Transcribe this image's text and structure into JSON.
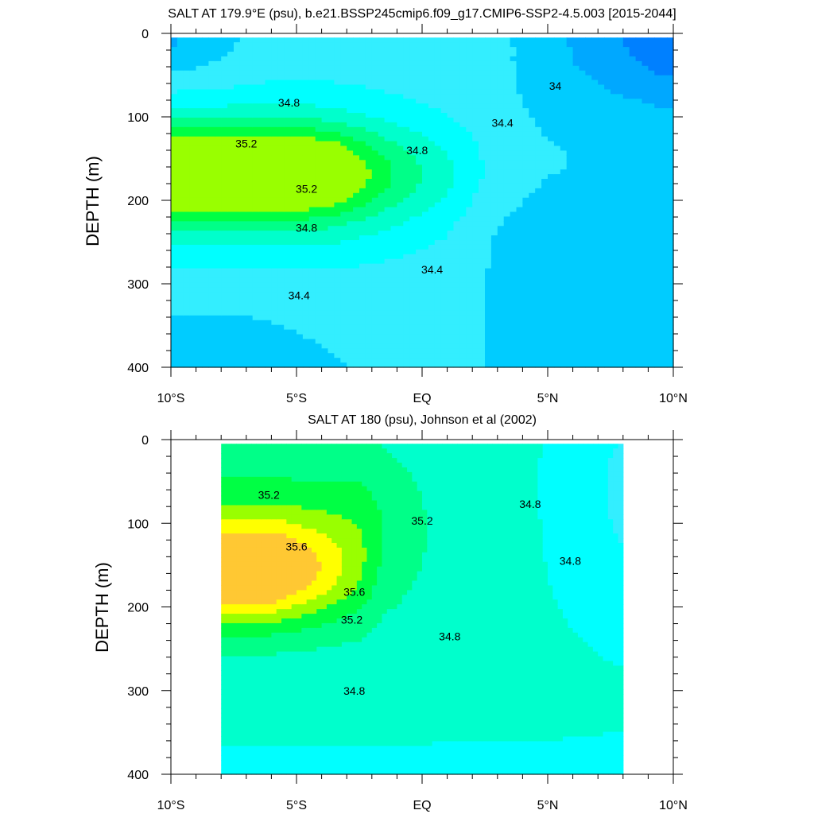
{
  "chart_data": [
    {
      "type": "heatmap",
      "title": "SALT AT 179.9°E (psu), b.e21.BSSP245cmip6.f09_g17.CMIP6-SSP2-4.5.003 [2015-2044]",
      "ylabel": "DEPTH (m)",
      "xlabel": "",
      "xlim": [
        -10,
        10
      ],
      "ylim": [
        400,
        0
      ],
      "y_ticks": [
        "0",
        "100",
        "200",
        "300",
        "400"
      ],
      "x_ticks": [
        "10°S",
        "5°S",
        "EQ",
        "5°N",
        "10°N"
      ],
      "data_extent": {
        "lat": [
          -10,
          10
        ],
        "depth": [
          5,
          400
        ]
      },
      "levels": [
        33.6,
        33.8,
        34.0,
        34.2,
        34.4,
        34.6,
        34.8,
        35.0,
        35.2,
        35.4
      ],
      "contour_labels": [
        {
          "value": "34.8",
          "lat": -5.3,
          "depth": 83
        },
        {
          "value": "35.2",
          "lat": -7.0,
          "depth": 132
        },
        {
          "value": "34.8",
          "lat": -0.2,
          "depth": 140
        },
        {
          "value": "34.4",
          "lat": 3.2,
          "depth": 107
        },
        {
          "value": "34",
          "lat": 5.3,
          "depth": 63
        },
        {
          "value": "35.2",
          "lat": -4.6,
          "depth": 186
        },
        {
          "value": "34.8",
          "lat": -4.6,
          "depth": 233
        },
        {
          "value": "34.4",
          "lat": 0.4,
          "depth": 283
        },
        {
          "value": "34.4",
          "lat": -4.9,
          "depth": 314
        }
      ]
    },
    {
      "type": "heatmap",
      "title": "SALT AT 180 (psu), Johnson et al (2002)",
      "ylabel": "DEPTH (m)",
      "xlabel": "",
      "xlim": [
        -10,
        10
      ],
      "ylim": [
        400,
        0
      ],
      "y_ticks": [
        "0",
        "100",
        "200",
        "300",
        "400"
      ],
      "x_ticks": [
        "10°S",
        "5°S",
        "EQ",
        "5°N",
        "10°N"
      ],
      "data_extent": {
        "lat": [
          -8,
          8
        ],
        "depth": [
          5,
          400
        ]
      },
      "levels": [
        34.4,
        34.6,
        34.8,
        35.0,
        35.2,
        35.4,
        35.6,
        35.8
      ],
      "contour_labels": [
        {
          "value": "35.2",
          "lat": -6.1,
          "depth": 66
        },
        {
          "value": "35.2",
          "lat": 0.0,
          "depth": 97
        },
        {
          "value": "34.8",
          "lat": 4.3,
          "depth": 77
        },
        {
          "value": "35.6",
          "lat": -5.0,
          "depth": 128
        },
        {
          "value": "34.8",
          "lat": 5.9,
          "depth": 145
        },
        {
          "value": "35.6",
          "lat": -2.7,
          "depth": 182
        },
        {
          "value": "35.2",
          "lat": -2.8,
          "depth": 215
        },
        {
          "value": "34.8",
          "lat": 1.1,
          "depth": 235
        },
        {
          "value": "34.8",
          "lat": -2.7,
          "depth": 300
        }
      ]
    }
  ],
  "colors": {
    "33.6": "#0040ff",
    "33.8": "#0080ff",
    "34.0": "#00a8ff",
    "34.2": "#00ccff",
    "34.4": "#33eeff",
    "34.6": "#00ffff",
    "34.8": "#00ffcc",
    "35.0": "#00ff88",
    "35.2": "#00ff44",
    "35.4": "#99ff00",
    "35.6": "#ffff00",
    "35.8": "#ffc833"
  }
}
